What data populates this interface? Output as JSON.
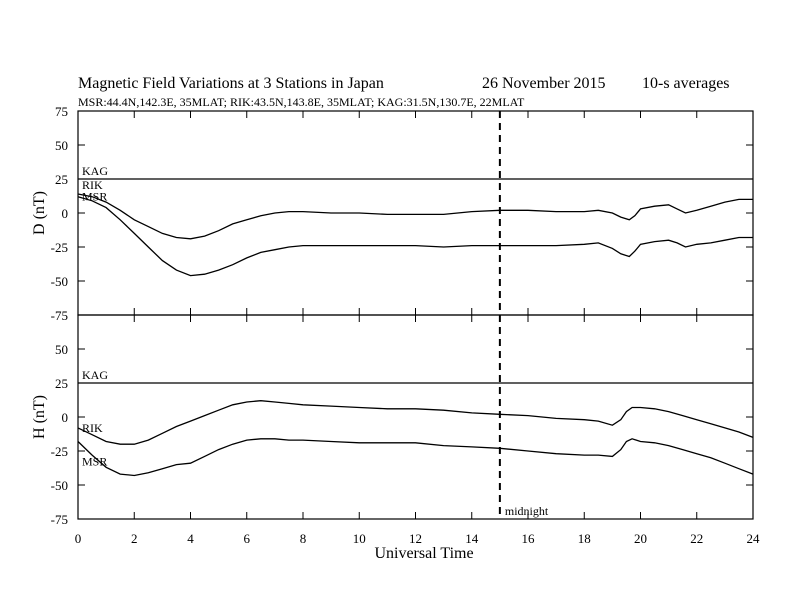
{
  "chart_data": {
    "type": "line",
    "title": "Magnetic Field Variations at 3 Stations in Japan",
    "date": "26 November 2015",
    "averaging": "10-s averages",
    "subtitle": "MSR:44.4N,142.3E, 35MLAT;  RIK:43.5N,143.8E, 35MLAT;  KAG:31.5N,130.7E, 22MLAT",
    "xlabel": "Universal Time",
    "xlim": [
      0,
      24
    ],
    "xticks": [
      0,
      2,
      4,
      6,
      8,
      10,
      12,
      14,
      16,
      18,
      20,
      22,
      24
    ],
    "annotation": {
      "x": 15,
      "label": "midnight"
    },
    "panels": [
      {
        "ylabel": "D (nT)",
        "ylim": [
          -75,
          75
        ],
        "yticks": [
          75,
          50,
          25,
          0,
          -25,
          -50,
          -75
        ],
        "series": [
          {
            "name": "KAG",
            "x": [
              0,
              24
            ],
            "values": [
              25,
              25
            ]
          },
          {
            "name": "RIK",
            "x": [
              0,
              0.5,
              1,
              1.5,
              2,
              2.5,
              3,
              3.5,
              4,
              4.5,
              5,
              5.5,
              6,
              6.5,
              7,
              7.5,
              8,
              9,
              10,
              11,
              12,
              13,
              14,
              15,
              16,
              17,
              18,
              18.5,
              19,
              19.3,
              19.6,
              19.8,
              20,
              20.5,
              21,
              21.3,
              21.6,
              22,
              22.5,
              23,
              23.5,
              24
            ],
            "values": [
              14,
              12,
              8,
              2,
              -5,
              -10,
              -15,
              -18,
              -19,
              -17,
              -13,
              -8,
              -5,
              -2,
              0,
              1,
              1,
              0,
              0,
              -1,
              -1,
              -1,
              1,
              2,
              2,
              1,
              1,
              2,
              0,
              -3,
              -5,
              -2,
              3,
              5,
              6,
              3,
              0,
              2,
              5,
              8,
              10,
              10
            ]
          },
          {
            "name": "MSR",
            "x": [
              0,
              0.5,
              1,
              1.5,
              2,
              2.5,
              3,
              3.5,
              4,
              4.5,
              5,
              5.5,
              6,
              6.5,
              7,
              7.5,
              8,
              9,
              10,
              11,
              12,
              13,
              14,
              15,
              16,
              17,
              18,
              18.5,
              19,
              19.3,
              19.6,
              19.8,
              20,
              20.5,
              21,
              21.3,
              21.6,
              22,
              22.5,
              23,
              23.5,
              24
            ],
            "values": [
              12,
              9,
              4,
              -5,
              -15,
              -25,
              -35,
              -42,
              -46,
              -45,
              -42,
              -38,
              -33,
              -29,
              -27,
              -25,
              -24,
              -24,
              -24,
              -24,
              -24,
              -25,
              -24,
              -24,
              -24,
              -24,
              -23,
              -22,
              -26,
              -30,
              -32,
              -28,
              -23,
              -21,
              -20,
              -22,
              -25,
              -23,
              -22,
              -20,
              -18,
              -18
            ]
          }
        ]
      },
      {
        "ylabel": "H (nT)",
        "ylim": [
          -75,
          75
        ],
        "yticks": [
          75,
          50,
          25,
          0,
          -25,
          -50,
          -75
        ],
        "series": [
          {
            "name": "KAG",
            "x": [
              0,
              24
            ],
            "values": [
              25,
              25
            ]
          },
          {
            "name": "RIK",
            "x": [
              0,
              0.5,
              1,
              1.5,
              2,
              2.5,
              3,
              3.5,
              4,
              4.5,
              5,
              5.5,
              6,
              6.5,
              7,
              7.5,
              8,
              9,
              10,
              11,
              12,
              13,
              14,
              15,
              16,
              17,
              18,
              18.5,
              19,
              19.3,
              19.5,
              19.7,
              20,
              20.5,
              21,
              21.5,
              22,
              22.5,
              23,
              23.5,
              24
            ],
            "values": [
              -8,
              -13,
              -18,
              -20,
              -20,
              -17,
              -12,
              -7,
              -3,
              1,
              5,
              9,
              11,
              12,
              11,
              10,
              9,
              8,
              7,
              6,
              6,
              5,
              3,
              2,
              1,
              -1,
              -2,
              -3,
              -6,
              -2,
              4,
              7,
              7,
              6,
              4,
              1,
              -2,
              -5,
              -8,
              -11,
              -15
            ]
          },
          {
            "name": "MSR",
            "x": [
              0,
              0.5,
              1,
              1.5,
              2,
              2.5,
              3,
              3.5,
              4,
              4.5,
              5,
              5.5,
              6,
              6.5,
              7,
              7.5,
              8,
              9,
              10,
              11,
              12,
              13,
              14,
              15,
              16,
              17,
              18,
              18.5,
              19,
              19.3,
              19.5,
              19.7,
              20,
              20.5,
              21,
              21.5,
              22,
              22.5,
              23,
              23.5,
              24
            ],
            "values": [
              -18,
              -28,
              -37,
              -42,
              -43,
              -41,
              -38,
              -35,
              -34,
              -29,
              -24,
              -20,
              -17,
              -16,
              -16,
              -17,
              -17,
              -18,
              -19,
              -19,
              -19,
              -21,
              -22,
              -23,
              -25,
              -27,
              -28,
              -28,
              -29,
              -24,
              -18,
              -16,
              -18,
              -19,
              -21,
              -24,
              -27,
              -30,
              -34,
              -38,
              -42
            ]
          }
        ]
      }
    ]
  }
}
